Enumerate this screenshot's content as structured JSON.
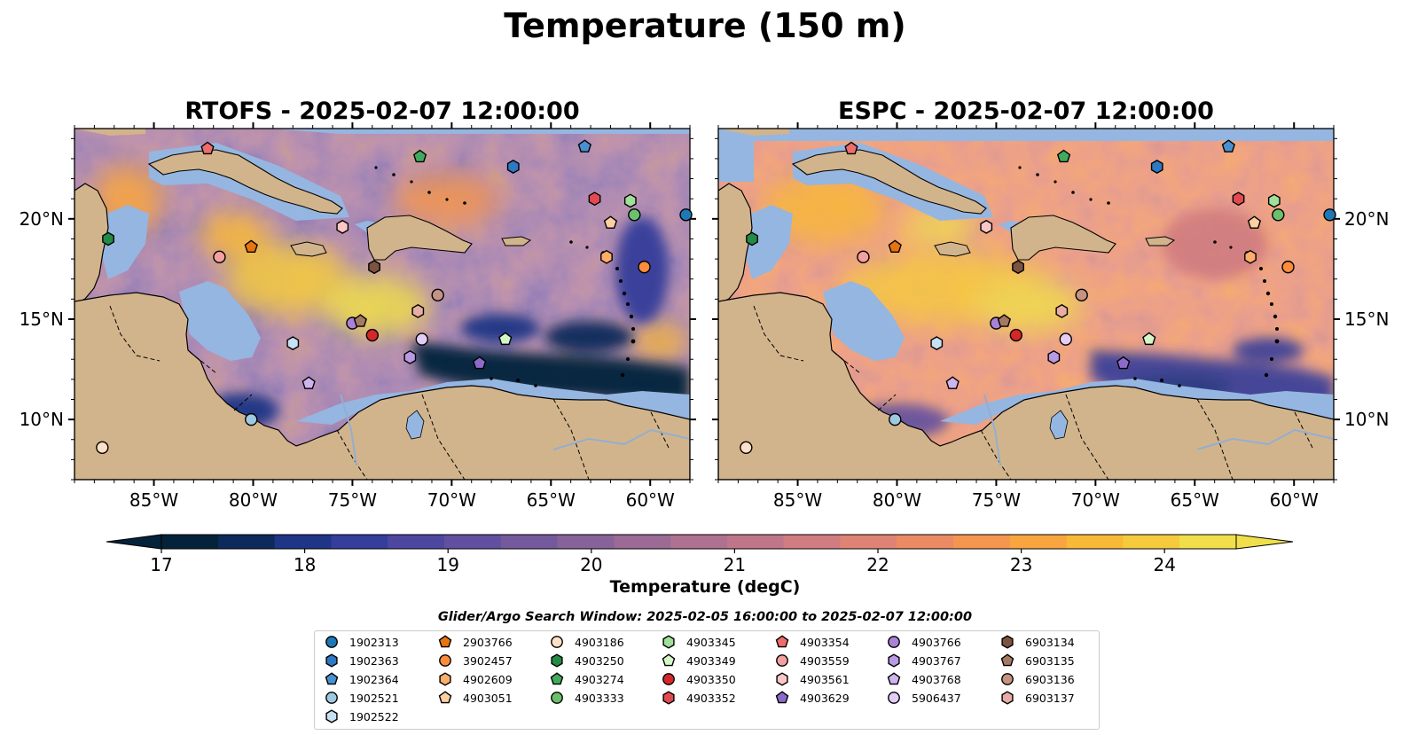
{
  "figure_title": "Temperature (150 m)",
  "panels": [
    {
      "title": "RTOFS - 2025-02-07 12:00:00"
    },
    {
      "title": "ESPC - 2025-02-07 12:00:00"
    }
  ],
  "colorbar": {
    "label": "Temperature (degC)",
    "ticks": [
      "17",
      "18",
      "19",
      "20",
      "21",
      "22",
      "23",
      "24"
    ],
    "range": [
      17,
      24.5
    ],
    "extend": "both",
    "colors": [
      "#04223a",
      "#0c2a5a",
      "#1f3585",
      "#353e9a",
      "#4d47a0",
      "#61509f",
      "#745a9c",
      "#876399",
      "#9b6a95",
      "#ae7190",
      "#c0768a",
      "#d07c81",
      "#df8374",
      "#eb8b63",
      "#f49650",
      "#f8a540",
      "#f8b838",
      "#f5cb3d",
      "#f0df4a"
    ]
  },
  "search_window": "Glider/Argo Search Window: 2025-02-05 16:00:00 to 2025-02-07 12:00:00",
  "land_color": "#d2b48c",
  "shelf_color": "#95b6e0",
  "chart_data": [
    {
      "type": "heatmap",
      "title": "RTOFS - 2025-02-07 12:00:00",
      "x_ticks": [
        "85°W",
        "80°W",
        "75°W",
        "70°W",
        "65°W",
        "60°W"
      ],
      "y_ticks": [
        "10°N",
        "15°N",
        "20°N"
      ],
      "xlim": [
        -89,
        -58
      ],
      "ylim": [
        7,
        24.5
      ],
      "value_field": "Temperature (degC) at 150 m",
      "floats": [
        {
          "id": "1902313",
          "lon": -58.2,
          "lat": 20.2
        },
        {
          "id": "1902364",
          "lon": -63.3,
          "lat": 23.6
        },
        {
          "id": "1902363",
          "lon": -66.9,
          "lat": 22.6
        },
        {
          "id": "1902521",
          "lon": -80.1,
          "lat": 10.0
        },
        {
          "id": "1902522",
          "lon": -78.0,
          "lat": 13.8
        },
        {
          "id": "2903766",
          "lon": -80.1,
          "lat": 18.6
        },
        {
          "id": "3902457",
          "lon": -60.3,
          "lat": 17.6
        },
        {
          "id": "4902609",
          "lon": -62.2,
          "lat": 18.1
        },
        {
          "id": "4903051",
          "lon": -62.0,
          "lat": 19.8
        },
        {
          "id": "4903186",
          "lon": -87.6,
          "lat": 8.6
        },
        {
          "id": "4903250",
          "lon": -87.3,
          "lat": 19.0
        },
        {
          "id": "4903274",
          "lon": -71.6,
          "lat": 23.1
        },
        {
          "id": "4903333",
          "lon": -60.8,
          "lat": 20.2
        },
        {
          "id": "4903345",
          "lon": -61.0,
          "lat": 20.9
        },
        {
          "id": "4903349",
          "lon": -67.3,
          "lat": 14.0
        },
        {
          "id": "4903350",
          "lon": -74.0,
          "lat": 14.2
        },
        {
          "id": "4903352",
          "lon": -62.8,
          "lat": 21.0
        },
        {
          "id": "4903354",
          "lon": -82.3,
          "lat": 23.5
        },
        {
          "id": "4903559",
          "lon": -81.7,
          "lat": 18.1
        },
        {
          "id": "4903561",
          "lon": -75.5,
          "lat": 19.6
        },
        {
          "id": "4903629",
          "lon": -68.6,
          "lat": 12.8
        },
        {
          "id": "4903766",
          "lon": -75.0,
          "lat": 14.8
        },
        {
          "id": "4903767",
          "lon": -72.1,
          "lat": 13.1
        },
        {
          "id": "4903768",
          "lon": -77.2,
          "lat": 11.8
        },
        {
          "id": "5906437",
          "lon": -71.5,
          "lat": 14.0
        },
        {
          "id": "6903134",
          "lon": -73.9,
          "lat": 17.6
        },
        {
          "id": "6903135",
          "lon": -74.6,
          "lat": 14.9
        },
        {
          "id": "6903136",
          "lon": -70.7,
          "lat": 16.2
        },
        {
          "id": "6903137",
          "lon": -71.7,
          "lat": 15.4
        }
      ]
    },
    {
      "type": "heatmap",
      "title": "ESPC - 2025-02-07 12:00:00",
      "x_ticks": [
        "85°W",
        "80°W",
        "75°W",
        "70°W",
        "65°W",
        "60°W"
      ],
      "y_ticks": [
        "10°N",
        "15°N",
        "20°N"
      ],
      "xlim": [
        -89,
        -58
      ],
      "ylim": [
        7,
        24.5
      ],
      "value_field": "Temperature (degC) at 150 m",
      "floats": "same as RTOFS panel"
    }
  ],
  "legend": [
    {
      "id": "1902313",
      "marker": "circle",
      "color": "#1f77b4"
    },
    {
      "id": "1902363",
      "marker": "hexagon",
      "color": "#2f78c4"
    },
    {
      "id": "1902364",
      "marker": "pentagon",
      "color": "#4a90d0"
    },
    {
      "id": "1902521",
      "marker": "circle",
      "color": "#9ecae1"
    },
    {
      "id": "1902522",
      "marker": "hexagon",
      "color": "#c6e0f4"
    },
    {
      "id": "2903766",
      "marker": "pentagon",
      "color": "#e6750f"
    },
    {
      "id": "3902457",
      "marker": "circle",
      "color": "#fd8d3c"
    },
    {
      "id": "4902609",
      "marker": "hexagon",
      "color": "#fdae6b"
    },
    {
      "id": "4903051",
      "marker": "pentagon",
      "color": "#fdd0a2"
    },
    {
      "id": "4903186",
      "marker": "circle",
      "color": "#fee0c8"
    },
    {
      "id": "4903250",
      "marker": "hexagon",
      "color": "#238b45"
    },
    {
      "id": "4903274",
      "marker": "pentagon",
      "color": "#41ab5d"
    },
    {
      "id": "4903333",
      "marker": "circle",
      "color": "#6cc06c"
    },
    {
      "id": "4903345",
      "marker": "hexagon",
      "color": "#a1e09a"
    },
    {
      "id": "4903349",
      "marker": "pentagon",
      "color": "#d4f7c8"
    },
    {
      "id": "4903350",
      "marker": "circle",
      "color": "#d62728"
    },
    {
      "id": "4903352",
      "marker": "hexagon",
      "color": "#e34a4f"
    },
    {
      "id": "4903354",
      "marker": "pentagon",
      "color": "#ef6c6c"
    },
    {
      "id": "4903559",
      "marker": "circle",
      "color": "#f4a0a0"
    },
    {
      "id": "4903561",
      "marker": "hexagon",
      "color": "#fbc6c6"
    },
    {
      "id": "4903629",
      "marker": "pentagon",
      "color": "#8c6bc8"
    },
    {
      "id": "4903766",
      "marker": "circle",
      "color": "#a982d8"
    },
    {
      "id": "4903767",
      "marker": "hexagon",
      "color": "#b89ae4"
    },
    {
      "id": "4903768",
      "marker": "pentagon",
      "color": "#cfb4ef"
    },
    {
      "id": "5906437",
      "marker": "circle",
      "color": "#e3cdf7"
    },
    {
      "id": "6903134",
      "marker": "hexagon",
      "color": "#7b5340"
    },
    {
      "id": "6903135",
      "marker": "pentagon",
      "color": "#a57a62"
    },
    {
      "id": "6903136",
      "marker": "circle",
      "color": "#c49384"
    },
    {
      "id": "6903137",
      "marker": "hexagon",
      "color": "#e8ada4"
    }
  ]
}
